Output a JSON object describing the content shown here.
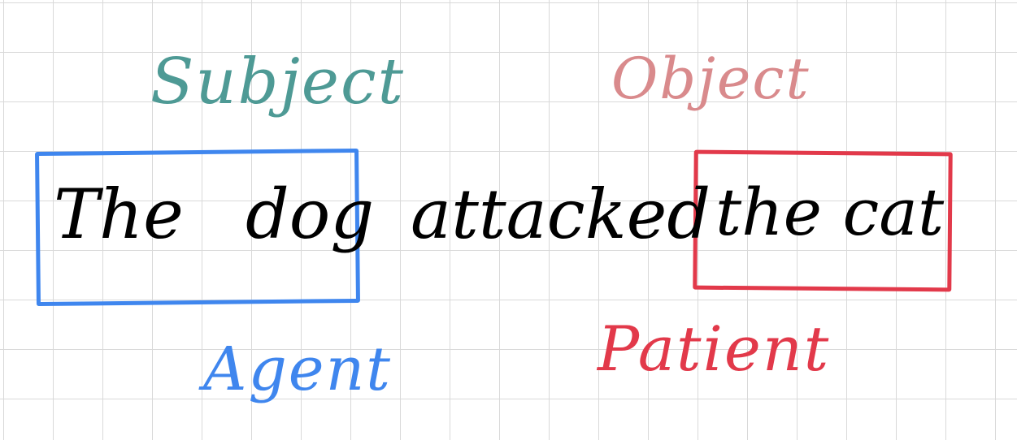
{
  "colors": {
    "subject": "#4e9a95",
    "object": "#d98a8c",
    "agent": "#3f86ee",
    "patient": "#e2394a",
    "text": "#000000"
  },
  "labels": {
    "subject": "Subject",
    "object": "Object",
    "agent": "Agent",
    "patient": "Patient"
  },
  "sentence": {
    "word_the": "The",
    "word_dog": "dog",
    "word_attacked": "attacked",
    "phrase_the_cat": "the cat"
  }
}
